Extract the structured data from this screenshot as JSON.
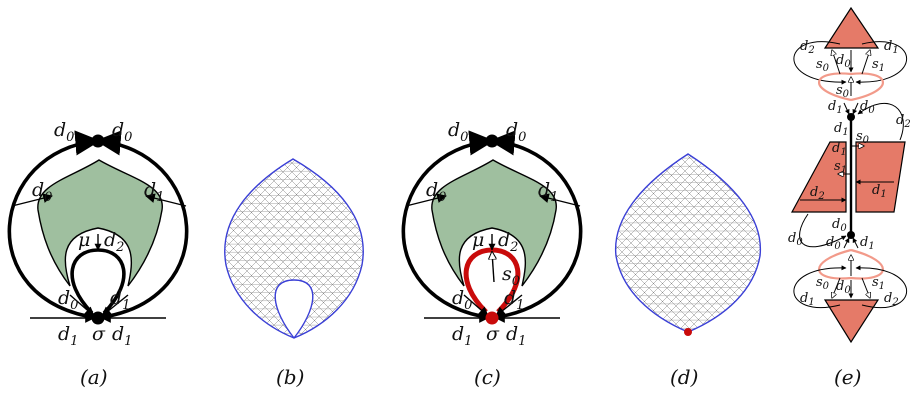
{
  "captions": [
    "(a)",
    "(b)",
    "(c)",
    "(d)",
    "(e)"
  ],
  "panel_a": {
    "top_left": "d",
    "top_left_sub": "0",
    "top_right": "d",
    "top_right_sub": "0",
    "mid_left": "d",
    "mid_left_sub": "0",
    "mid_right": "d",
    "mid_right_sub": "1",
    "mu": "μ",
    "inner_d2": "d",
    "inner_d2_sub": "2",
    "inner_d0": "d",
    "inner_d0_sub": "0",
    "inner_d1": "d",
    "inner_d1_sub": "1",
    "bot_left": "d",
    "bot_left_sub": "1",
    "bot_right": "d",
    "bot_right_sub": "1",
    "sigma": "σ"
  },
  "panel_c": {
    "top_left": "d",
    "top_left_sub": "0",
    "top_right": "d",
    "top_right_sub": "0",
    "mid_left": "d",
    "mid_left_sub": "0",
    "mid_right": "d",
    "mid_right_sub": "1",
    "mu": "μ",
    "inner_d2": "d",
    "inner_d2_sub": "2",
    "s0": "s",
    "s0_sub": "0",
    "inner_d0": "d",
    "inner_d0_sub": "0",
    "inner_d1": "d",
    "inner_d1_sub": "1",
    "bot_left": "d",
    "bot_left_sub": "1",
    "bot_right": "d",
    "bot_right_sub": "1",
    "sigma": "σ"
  },
  "panel_e": {
    "top_d2": "d",
    "top_d2_sub": "2",
    "top_d1": "d",
    "top_d1_sub": "1",
    "top_s0": "s",
    "top_s0_sub": "0",
    "top_d0": "d",
    "top_d0_sub": "0",
    "top_s1": "s",
    "top_s1_sub": "1",
    "loop_s0": "s",
    "loop_s0_sub": "0",
    "upper_d1": "d",
    "upper_d1_sub": "1",
    "upper_d0": "d",
    "upper_d0_sub": "0",
    "right_d2": "d",
    "right_d2_sub": "2",
    "stem_d1": "d",
    "stem_d1_sub": "1",
    "stem_s0": "s",
    "stem_s0_sub": "0",
    "mid_d1": "d",
    "mid_d1_sub": "1",
    "mid_s1": "s",
    "mid_s1_sub": "1",
    "par_d1": "d",
    "par_d1_sub": "1",
    "par_d2": "d",
    "par_d2_sub": "2",
    "low_d0a": "d",
    "low_d0a_sub": "0",
    "left_d0": "d",
    "left_d0_sub": "0",
    "low_d0b": "d",
    "low_d0b_sub": "0",
    "low_d1": "d",
    "low_d1_sub": "1",
    "bot_s0": "s",
    "bot_s0_sub": "0",
    "bot_d0": "d",
    "bot_d0_sub": "0",
    "bot_s1": "s",
    "bot_s1_sub": "1",
    "bot_d1": "d",
    "bot_d1_sub": "1",
    "bot_d2": "d",
    "bot_d2_sub": "2"
  },
  "colors": {
    "leaf": "#9fbf9f",
    "loop_red": "#c90b0b",
    "mesh_outline": "#3a3fd6",
    "triangle": "#e57a68",
    "pink_loop": "#f29a8a"
  }
}
